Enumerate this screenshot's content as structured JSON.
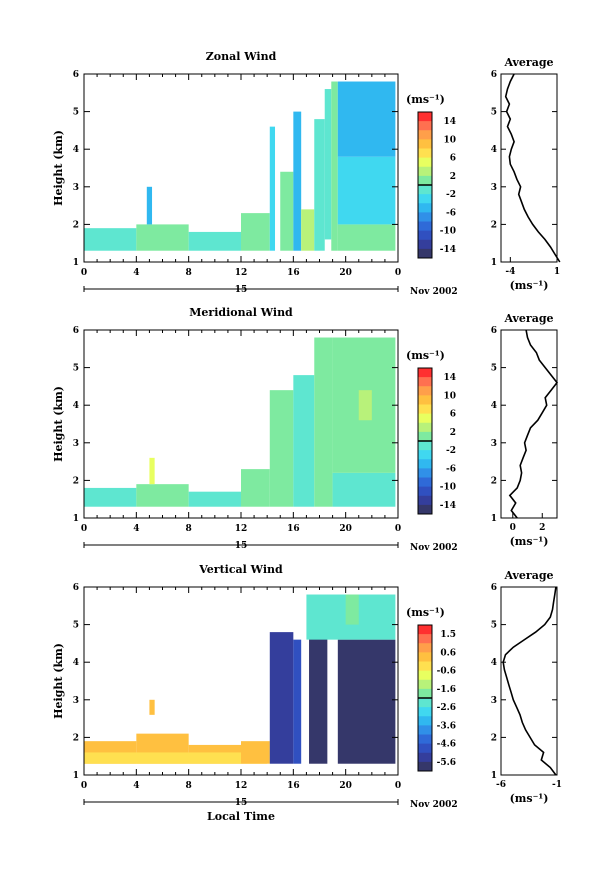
{
  "figure": {
    "bottom_xlabel": "Local Time"
  },
  "colormap": [
    "#ffffff",
    "#cdcdcd",
    "#ff3030",
    "#ff7050",
    "#ff9f4a",
    "#ffc040",
    "#ffe050",
    "#e8ff60",
    "#b8f27a",
    "#7eeaa0",
    "#5ee6d0",
    "#40d8f0",
    "#30b8f0",
    "#3090e8",
    "#2f6ad8",
    "#3050c0",
    "#343e9c",
    "#35376a"
  ],
  "chart_data": [
    {
      "type": "heatmap",
      "title": "Zonal Wind",
      "ylabel": "Height (km)",
      "yticks": [
        "1",
        "2",
        "3",
        "4",
        "5",
        "6"
      ],
      "ylim": [
        1,
        6
      ],
      "xticks": [
        "0",
        "4",
        "8",
        "12",
        "16",
        "20",
        "0"
      ],
      "xlim": [
        0,
        24
      ],
      "day_label": "15",
      "month_label": "Nov 2002",
      "cbar_unit": "(ms⁻¹)",
      "cbar_ticks": [
        "14",
        "10",
        "6",
        "2",
        "-2",
        "-6",
        "-10",
        "-14"
      ],
      "cbar_range": [
        -16,
        16
      ],
      "profile_title": "Average",
      "profile_xticks": [
        "-4",
        "1"
      ],
      "profile_xunit": "(ms⁻¹)",
      "profile_xlim": [
        -5,
        1
      ],
      "profile": [
        [
          1.0,
          1.3
        ],
        [
          1.2,
          0.8
        ],
        [
          1.4,
          0.3
        ],
        [
          1.6,
          -0.3
        ],
        [
          1.8,
          -1.0
        ],
        [
          2.0,
          -1.6
        ],
        [
          2.2,
          -2.1
        ],
        [
          2.4,
          -2.5
        ],
        [
          2.6,
          -2.8
        ],
        [
          2.8,
          -3.1
        ],
        [
          3.0,
          -2.9
        ],
        [
          3.2,
          -3.3
        ],
        [
          3.4,
          -3.6
        ],
        [
          3.6,
          -4.0
        ],
        [
          3.8,
          -4.1
        ],
        [
          4.0,
          -3.9
        ],
        [
          4.2,
          -3.6
        ],
        [
          4.4,
          -3.9
        ],
        [
          4.6,
          -4.3
        ],
        [
          4.8,
          -4.0
        ],
        [
          5.0,
          -4.4
        ],
        [
          5.2,
          -4.1
        ],
        [
          5.4,
          -4.5
        ],
        [
          5.6,
          -4.3
        ],
        [
          5.8,
          -4.0
        ],
        [
          6.0,
          -3.6
        ]
      ],
      "regions": [
        {
          "x": [
            0.0,
            4.0
          ],
          "y": [
            1.3,
            1.9
          ],
          "level": 10
        },
        {
          "x": [
            4.0,
            8.0
          ],
          "y": [
            1.3,
            2.0
          ],
          "level": 9
        },
        {
          "x": [
            4.8,
            5.2
          ],
          "y": [
            2.0,
            3.0
          ],
          "level": 12
        },
        {
          "x": [
            8.0,
            12.0
          ],
          "y": [
            1.3,
            1.8
          ],
          "level": 10
        },
        {
          "x": [
            12.0,
            14.2
          ],
          "y": [
            1.3,
            2.3
          ],
          "level": 9
        },
        {
          "x": [
            14.2,
            14.6
          ],
          "y": [
            1.3,
            4.6
          ],
          "level": 11
        },
        {
          "x": [
            15.0,
            16.0
          ],
          "y": [
            1.3,
            3.4
          ],
          "level": 9
        },
        {
          "x": [
            16.0,
            16.6
          ],
          "y": [
            1.3,
            5.0
          ],
          "level": 12
        },
        {
          "x": [
            16.6,
            17.6
          ],
          "y": [
            1.3,
            2.4
          ],
          "level": 8
        },
        {
          "x": [
            17.6,
            18.4
          ],
          "y": [
            1.3,
            4.8
          ],
          "level": 10
        },
        {
          "x": [
            18.4,
            18.9
          ],
          "y": [
            1.6,
            5.6
          ],
          "level": 10
        },
        {
          "x": [
            18.9,
            19.4
          ],
          "y": [
            1.3,
            5.8
          ],
          "level": 9
        },
        {
          "x": [
            19.4,
            23.8
          ],
          "y": [
            1.3,
            2.0
          ],
          "level": 9
        },
        {
          "x": [
            19.4,
            23.8
          ],
          "y": [
            2.0,
            3.8
          ],
          "level": 11
        },
        {
          "x": [
            19.4,
            23.8
          ],
          "y": [
            3.8,
            5.8
          ],
          "level": 12
        }
      ]
    },
    {
      "type": "heatmap",
      "title": "Meridional Wind",
      "ylabel": "Height (km)",
      "yticks": [
        "1",
        "2",
        "3",
        "4",
        "5",
        "6"
      ],
      "ylim": [
        1,
        6
      ],
      "xticks": [
        "0",
        "4",
        "8",
        "12",
        "16",
        "20",
        "0"
      ],
      "xlim": [
        0,
        24
      ],
      "day_label": "15",
      "month_label": "Nov 2002",
      "cbar_unit": "(ms⁻¹)",
      "cbar_ticks": [
        "14",
        "10",
        "6",
        "2",
        "-2",
        "-6",
        "-10",
        "-14"
      ],
      "cbar_range": [
        -16,
        16
      ],
      "profile_title": "Average",
      "profile_xticks": [
        "0",
        "2"
      ],
      "profile_xunit": "(ms⁻¹)",
      "profile_xlim": [
        -0.8,
        3.0
      ],
      "profile": [
        [
          1.0,
          0.3
        ],
        [
          1.2,
          -0.1
        ],
        [
          1.4,
          0.2
        ],
        [
          1.6,
          -0.2
        ],
        [
          1.8,
          0.3
        ],
        [
          2.0,
          0.5
        ],
        [
          2.2,
          0.6
        ],
        [
          2.4,
          0.5
        ],
        [
          2.6,
          0.7
        ],
        [
          2.8,
          0.9
        ],
        [
          3.0,
          0.8
        ],
        [
          3.2,
          1.0
        ],
        [
          3.4,
          1.2
        ],
        [
          3.6,
          1.7
        ],
        [
          3.8,
          2.0
        ],
        [
          4.0,
          2.3
        ],
        [
          4.2,
          2.2
        ],
        [
          4.4,
          2.6
        ],
        [
          4.6,
          3.0
        ],
        [
          4.8,
          2.6
        ],
        [
          5.0,
          2.2
        ],
        [
          5.2,
          1.8
        ],
        [
          5.4,
          1.6
        ],
        [
          5.6,
          1.2
        ],
        [
          5.8,
          1.0
        ],
        [
          6.0,
          0.9
        ]
      ],
      "regions": [
        {
          "x": [
            0.0,
            4.0
          ],
          "y": [
            1.3,
            1.8
          ],
          "level": 10
        },
        {
          "x": [
            4.0,
            8.0
          ],
          "y": [
            1.3,
            1.9
          ],
          "level": 9
        },
        {
          "x": [
            5.0,
            5.4
          ],
          "y": [
            1.9,
            2.6
          ],
          "level": 7
        },
        {
          "x": [
            8.0,
            12.0
          ],
          "y": [
            1.3,
            1.7
          ],
          "level": 10
        },
        {
          "x": [
            12.0,
            14.2
          ],
          "y": [
            1.3,
            2.3
          ],
          "level": 9
        },
        {
          "x": [
            14.2,
            16.0
          ],
          "y": [
            1.3,
            4.4
          ],
          "level": 9
        },
        {
          "x": [
            16.0,
            17.6
          ],
          "y": [
            1.3,
            4.8
          ],
          "level": 10
        },
        {
          "x": [
            17.6,
            19.0
          ],
          "y": [
            1.3,
            5.8
          ],
          "level": 9
        },
        {
          "x": [
            19.0,
            23.8
          ],
          "y": [
            1.3,
            2.2
          ],
          "level": 10
        },
        {
          "x": [
            19.0,
            23.8
          ],
          "y": [
            2.2,
            5.8
          ],
          "level": 9
        },
        {
          "x": [
            21.0,
            22.0
          ],
          "y": [
            3.6,
            4.4
          ],
          "level": 8
        }
      ]
    },
    {
      "type": "heatmap",
      "title": "Vertical Wind",
      "ylabel": "Height (km)",
      "yticks": [
        "1",
        "2",
        "3",
        "4",
        "5",
        "6"
      ],
      "ylim": [
        1,
        6
      ],
      "xticks": [
        "0",
        "4",
        "8",
        "12",
        "16",
        "20",
        "0"
      ],
      "xlim": [
        0,
        24
      ],
      "day_label": "15",
      "month_label": "Nov 2002",
      "cbar_unit": "(ms⁻¹)",
      "cbar_ticks": [
        "1.5",
        "0.6",
        "-0.6",
        "-1.6",
        "-2.6",
        "-3.6",
        "-4.6",
        "-5.6"
      ],
      "cbar_range": [
        -6.0,
        2.0
      ],
      "profile_title": "Average",
      "profile_xticks": [
        "-6",
        "-1"
      ],
      "profile_xunit": "(ms⁻¹)",
      "profile_xlim": [
        -6,
        -1
      ],
      "profile": [
        [
          1.0,
          -1.1
        ],
        [
          1.2,
          -1.6
        ],
        [
          1.4,
          -2.4
        ],
        [
          1.6,
          -2.2
        ],
        [
          1.8,
          -3.0
        ],
        [
          2.0,
          -3.4
        ],
        [
          2.2,
          -3.8
        ],
        [
          2.4,
          -4.1
        ],
        [
          2.6,
          -4.3
        ],
        [
          2.8,
          -4.6
        ],
        [
          3.0,
          -4.9
        ],
        [
          3.2,
          -5.1
        ],
        [
          3.4,
          -5.3
        ],
        [
          3.6,
          -5.5
        ],
        [
          3.8,
          -5.7
        ],
        [
          4.0,
          -5.8
        ],
        [
          4.2,
          -5.6
        ],
        [
          4.4,
          -4.9
        ],
        [
          4.6,
          -3.9
        ],
        [
          4.8,
          -2.9
        ],
        [
          5.0,
          -2.1
        ],
        [
          5.2,
          -1.6
        ],
        [
          5.4,
          -1.4
        ],
        [
          5.6,
          -1.3
        ],
        [
          5.8,
          -1.2
        ],
        [
          6.0,
          -1.1
        ]
      ],
      "regions": [
        {
          "x": [
            0.0,
            4.0
          ],
          "y": [
            1.3,
            1.9
          ],
          "level": 5
        },
        {
          "x": [
            4.0,
            8.0
          ],
          "y": [
            1.3,
            2.1
          ],
          "level": 5
        },
        {
          "x": [
            5.0,
            5.4
          ],
          "y": [
            2.6,
            3.0
          ],
          "level": 5
        },
        {
          "x": [
            8.0,
            12.0
          ],
          "y": [
            1.3,
            1.8
          ],
          "level": 5
        },
        {
          "x": [
            0.0,
            14.0
          ],
          "y": [
            1.3,
            1.6
          ],
          "level": 6
        },
        {
          "x": [
            12.0,
            14.2
          ],
          "y": [
            1.3,
            1.9
          ],
          "level": 5
        },
        {
          "x": [
            14.2,
            16.0
          ],
          "y": [
            1.3,
            4.8
          ],
          "level": 16
        },
        {
          "x": [
            16.0,
            16.6
          ],
          "y": [
            1.3,
            4.6
          ],
          "level": 15
        },
        {
          "x": [
            17.2,
            18.6
          ],
          "y": [
            1.3,
            4.8
          ],
          "level": 17
        },
        {
          "x": [
            19.4,
            23.8
          ],
          "y": [
            1.3,
            4.6
          ],
          "level": 17
        },
        {
          "x": [
            17.0,
            23.8
          ],
          "y": [
            4.6,
            5.8
          ],
          "level": 10
        },
        {
          "x": [
            20.0,
            21.0
          ],
          "y": [
            5.0,
            5.8
          ],
          "level": 9
        }
      ]
    }
  ]
}
